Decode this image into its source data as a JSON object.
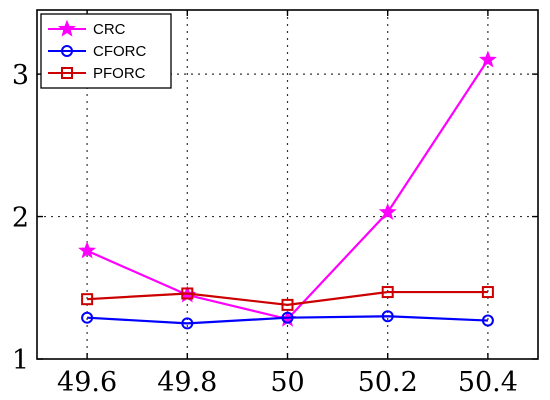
{
  "chart_data": {
    "type": "line",
    "x": [
      49.6,
      49.8,
      50,
      50.2,
      50.4
    ],
    "x_tick_labels": [
      "49.6",
      "49.8",
      "50",
      "50.2",
      "50.4"
    ],
    "y_ticks": [
      1,
      2,
      3
    ],
    "y_tick_labels": [
      "1",
      "2",
      "3"
    ],
    "xlim": [
      49.5,
      50.5
    ],
    "ylim": [
      1,
      3.45
    ],
    "grid": true,
    "legend_position": "top-left",
    "series": [
      {
        "name": "CRC",
        "values": [
          1.76,
          1.45,
          1.28,
          2.03,
          3.1
        ],
        "color": "#ff00ff",
        "marker": "star"
      },
      {
        "name": "CFORC",
        "values": [
          1.29,
          1.25,
          1.29,
          1.3,
          1.27
        ],
        "color": "#0000ff",
        "marker": "circle"
      },
      {
        "name": "PFORC",
        "values": [
          1.42,
          1.46,
          1.38,
          1.47,
          1.47
        ],
        "color": "#cc0000",
        "marker": "square"
      }
    ],
    "title": "",
    "xlabel": "",
    "ylabel": ""
  }
}
